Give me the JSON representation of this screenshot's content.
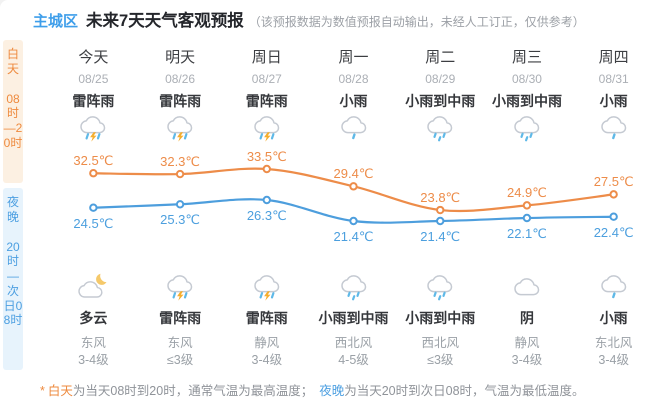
{
  "header": {
    "region": "主城区",
    "title": "未来7天天气客观预报",
    "note": "（该预报数据为数值预报自动输出，未经人工订正，仅供参考）"
  },
  "sidebar": {
    "day": {
      "label": "白天",
      "time": "08时—20时"
    },
    "night": {
      "label": "夜晚",
      "time": "20时—次日08时"
    }
  },
  "days": [
    {
      "name": "今天",
      "date": "08/25",
      "day_condition": "雷阵雨",
      "day_icon": "thunderstorm-icon",
      "high": "32.5℃",
      "low": "24.5℃",
      "night_icon": "cloudy-night-icon",
      "night_condition": "多云",
      "wind_dir": "东风",
      "wind_level": "3-4级"
    },
    {
      "name": "明天",
      "date": "08/26",
      "day_condition": "雷阵雨",
      "day_icon": "thunderstorm-icon",
      "high": "32.3℃",
      "low": "25.3℃",
      "night_icon": "thunderstorm-icon",
      "night_condition": "雷阵雨",
      "wind_dir": "东风",
      "wind_level": "≤3级"
    },
    {
      "name": "周日",
      "date": "08/27",
      "day_condition": "雷阵雨",
      "day_icon": "thunderstorm-icon",
      "high": "33.5℃",
      "low": "26.3℃",
      "night_icon": "thunderstorm-icon",
      "night_condition": "雷阵雨",
      "wind_dir": "静风",
      "wind_level": "3-4级"
    },
    {
      "name": "周一",
      "date": "08/28",
      "day_condition": "小雨",
      "day_icon": "light-rain-icon",
      "high": "29.4℃",
      "low": "21.4℃",
      "night_icon": "moderate-rain-icon",
      "night_condition": "小雨到中雨",
      "wind_dir": "西北风",
      "wind_level": "4-5级"
    },
    {
      "name": "周二",
      "date": "08/29",
      "day_condition": "小雨到中雨",
      "day_icon": "moderate-rain-icon",
      "high": "23.8℃",
      "low": "21.4℃",
      "night_icon": "moderate-rain-icon",
      "night_condition": "小雨到中雨",
      "wind_dir": "西北风",
      "wind_level": "≤3级"
    },
    {
      "name": "周三",
      "date": "08/30",
      "day_condition": "小雨到中雨",
      "day_icon": "moderate-rain-icon",
      "high": "24.9℃",
      "low": "22.1℃",
      "night_icon": "overcast-icon",
      "night_condition": "阴",
      "wind_dir": "静风",
      "wind_level": "3-4级"
    },
    {
      "name": "周四",
      "date": "08/31",
      "day_condition": "小雨",
      "day_icon": "light-rain-icon",
      "high": "27.5℃",
      "low": "22.4℃",
      "night_icon": "light-rain-icon",
      "night_condition": "小雨",
      "wind_dir": "东北风",
      "wind_level": "3-4级"
    }
  ],
  "chart_data": {
    "type": "line",
    "categories": [
      "今天 08/25",
      "明天 08/26",
      "周日 08/27",
      "周一 08/28",
      "周二 08/29",
      "周三 08/30",
      "周四 08/31"
    ],
    "series": [
      {
        "name": "白天最高气温",
        "color": "#ED8C49",
        "values": [
          32.5,
          32.3,
          33.5,
          29.4,
          23.8,
          24.9,
          27.5
        ]
      },
      {
        "name": "夜晚最低气温",
        "color": "#4D9EDD",
        "values": [
          24.5,
          25.3,
          26.3,
          21.4,
          21.4,
          22.1,
          22.4
        ]
      }
    ],
    "unit": "℃",
    "title": "未来7天天气客观预报",
    "xlabel": "",
    "ylabel": "",
    "legend_position": "none",
    "grid": false
  },
  "footnote": {
    "star": "*",
    "day_label": "白天",
    "part1": "为当天08时到20时，通常气温为最高温度；",
    "night_label": "夜晚",
    "part2": "为当天20时到次日08时，气温为最低温度。"
  },
  "colors": {
    "accent_blue": "#3E9EEA",
    "day_accent": "#EE8A3E",
    "day_strip_bg": "#FCF0E2",
    "night_accent": "#4C9FE1",
    "night_strip_bg": "#E7F3FC",
    "high_line": "#ED8C49",
    "low_line": "#4D9EDD",
    "text_dark": "#35373B",
    "text_gray": "#9AA0A6"
  }
}
